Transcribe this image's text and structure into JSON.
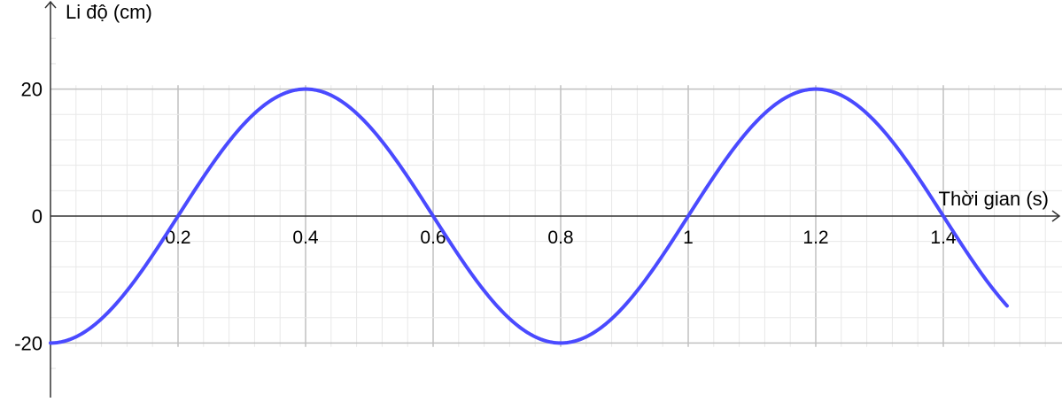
{
  "chart_data": {
    "type": "line",
    "title": "",
    "xlabel": "Thời gian (s)",
    "ylabel": "Li độ (cm)",
    "xlim": [
      0,
      1.58
    ],
    "ylim": [
      -28,
      30
    ],
    "grid": true,
    "x_ticks": [
      0.2,
      0.4,
      0.6,
      0.8,
      1,
      1.2,
      1.4
    ],
    "x_tick_labels": [
      "0.2",
      "0.4",
      "0.6",
      "0.8",
      "1",
      "1.2",
      "1.4"
    ],
    "y_ticks": [
      20,
      0,
      -20
    ],
    "y_tick_labels": [
      "20",
      "0",
      "-20"
    ],
    "series": [
      {
        "function": "x(t) = -20 cos(2.5πt)",
        "amplitude": 20,
        "period": 0.8,
        "t_range": [
          0,
          1.5
        ],
        "color": "#4a4aff",
        "points": [
          [
            0,
            -20
          ],
          [
            0.2,
            0
          ],
          [
            0.4,
            20
          ],
          [
            0.6,
            0
          ],
          [
            0.8,
            -20
          ],
          [
            1.0,
            0
          ],
          [
            1.2,
            20
          ],
          [
            1.4,
            0
          ],
          [
            1.5,
            -14.1
          ]
        ]
      }
    ]
  }
}
